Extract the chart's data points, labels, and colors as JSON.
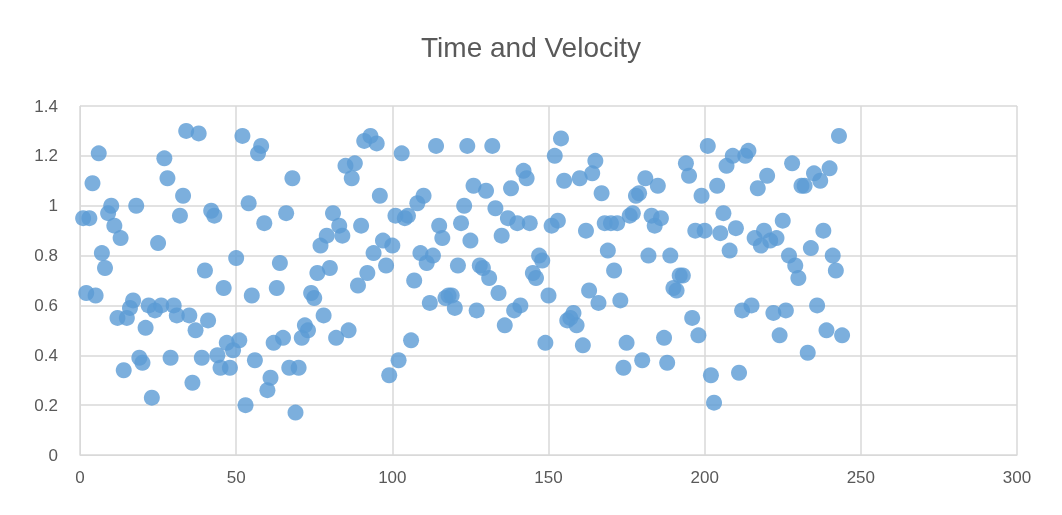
{
  "chart_data": {
    "type": "scatter",
    "title": "Time and Velocity",
    "xlim": [
      0,
      300
    ],
    "xticks": [
      0,
      50,
      100,
      150,
      200,
      250,
      300
    ],
    "ylim": [
      0,
      1.4
    ],
    "yticks": [
      0,
      0.2,
      0.4,
      0.6,
      0.8,
      1,
      1.2,
      1.4
    ],
    "grid": true,
    "marker": "circle",
    "series": [
      {
        "color": "#5b9bd5",
        "x": [
          1,
          2,
          3,
          4,
          5,
          6,
          7,
          8,
          9,
          10,
          11,
          12,
          13,
          14,
          15,
          16,
          17,
          18,
          19,
          20,
          21,
          22,
          23,
          24,
          25,
          26,
          27,
          28,
          29,
          30,
          31,
          32,
          33,
          34,
          35,
          36,
          37,
          38,
          39,
          40,
          41,
          42,
          43,
          44,
          45,
          46,
          47,
          48,
          49,
          50,
          51,
          52,
          53,
          54,
          55,
          56,
          57,
          58,
          59,
          60,
          61,
          62,
          63,
          64,
          65,
          66,
          67,
          68,
          69,
          70,
          71,
          72,
          73,
          74,
          75,
          76,
          77,
          78,
          79,
          80,
          81,
          82,
          83,
          84,
          85,
          86,
          87,
          88,
          89,
          90,
          91,
          92,
          93,
          94,
          95,
          96,
          97,
          98,
          99,
          100,
          101,
          102,
          103,
          104,
          105,
          106,
          107,
          108,
          109,
          110,
          111,
          112,
          113,
          114,
          115,
          116,
          117,
          118,
          119,
          120,
          121,
          122,
          123,
          124,
          125,
          126,
          127,
          128,
          129,
          130,
          131,
          132,
          133,
          134,
          135,
          136,
          137,
          138,
          139,
          140,
          141,
          142,
          143,
          144,
          145,
          146,
          147,
          148,
          149,
          150,
          151,
          152,
          153,
          154,
          155,
          156,
          157,
          158,
          159,
          160,
          161,
          162,
          163,
          164,
          165,
          166,
          167,
          168,
          169,
          170,
          171,
          172,
          173,
          174,
          175,
          176,
          177,
          178,
          179,
          180,
          181,
          182,
          183,
          184,
          185,
          186,
          187,
          188,
          189,
          190,
          191,
          192,
          193,
          194,
          195,
          196,
          197,
          198,
          199,
          200,
          201,
          202,
          203,
          204,
          205,
          206,
          207,
          208,
          209,
          210,
          211,
          212,
          213,
          214,
          215,
          216,
          217,
          218,
          219,
          220,
          221,
          222,
          223,
          224,
          225,
          226,
          227,
          228,
          229,
          230,
          231,
          232,
          233,
          234,
          235,
          236,
          237,
          238,
          239,
          240,
          241,
          242,
          243,
          244
        ],
        "values": [
          0.95,
          0.65,
          0.95,
          1.09,
          0.64,
          1.21,
          0.81,
          0.75,
          0.97,
          1.0,
          0.92,
          0.55,
          0.87,
          0.34,
          0.55,
          0.59,
          0.62,
          1.0,
          0.39,
          0.37,
          0.51,
          0.6,
          0.23,
          0.58,
          0.85,
          0.6,
          1.19,
          1.11,
          0.39,
          0.6,
          0.56,
          0.96,
          1.04,
          1.3,
          0.56,
          0.29,
          0.5,
          1.29,
          0.39,
          0.74,
          0.54,
          0.98,
          0.96,
          0.4,
          0.35,
          0.67,
          0.45,
          0.35,
          0.42,
          0.79,
          0.46,
          1.28,
          0.2,
          1.01,
          0.64,
          0.38,
          1.21,
          1.24,
          0.93,
          0.26,
          0.31,
          0.45,
          0.67,
          0.77,
          0.47,
          0.97,
          0.35,
          1.11,
          0.17,
          0.35,
          0.47,
          0.52,
          0.5,
          0.65,
          0.63,
          0.73,
          0.84,
          0.56,
          0.88,
          0.75,
          0.97,
          0.47,
          0.92,
          0.88,
          1.16,
          0.5,
          1.11,
          1.17,
          0.68,
          0.92,
          1.26,
          0.73,
          1.28,
          0.81,
          1.25,
          1.04,
          0.86,
          0.76,
          0.32,
          0.84,
          0.96,
          0.38,
          1.21,
          0.95,
          0.96,
          0.46,
          0.7,
          1.01,
          0.81,
          1.04,
          0.77,
          0.61,
          0.8,
          1.24,
          0.92,
          0.87,
          0.63,
          0.64,
          0.64,
          0.59,
          0.76,
          0.93,
          1.0,
          1.24,
          0.86,
          1.08,
          0.58,
          0.76,
          0.75,
          1.06,
          0.71,
          1.24,
          0.99,
          0.65,
          0.88,
          0.52,
          0.95,
          1.07,
          0.58,
          0.93,
          0.6,
          1.14,
          1.11,
          0.93,
          0.73,
          0.71,
          0.8,
          0.78,
          0.45,
          0.64,
          0.92,
          1.2,
          0.94,
          1.27,
          1.1,
          0.54,
          0.55,
          0.57,
          0.52,
          1.11,
          0.44,
          0.9,
          0.66,
          1.13,
          1.18,
          0.61,
          1.05,
          0.93,
          0.82,
          0.93,
          0.74,
          0.93,
          0.62,
          0.35,
          0.45,
          0.96,
          0.97,
          1.04,
          1.05,
          0.38,
          1.11,
          0.8,
          0.96,
          0.92,
          1.08,
          0.95,
          0.47,
          0.37,
          0.8,
          0.67,
          0.66,
          0.72,
          0.72,
          1.17,
          1.12,
          0.55,
          0.9,
          0.48,
          1.04,
          0.9,
          1.24,
          0.32,
          0.21,
          1.08,
          0.89,
          0.97,
          1.16,
          0.82,
          1.2,
          0.91,
          0.33,
          0.58,
          1.2,
          1.22,
          0.6,
          0.87,
          1.07,
          0.84,
          0.9,
          1.12,
          0.86,
          0.57,
          0.87,
          0.48,
          0.94,
          0.58,
          0.8,
          1.17,
          0.76,
          0.71,
          1.08,
          1.08,
          0.41,
          0.83,
          1.13,
          0.6,
          1.1,
          0.9,
          0.5,
          1.15,
          0.8,
          0.74,
          1.28,
          0.48
        ]
      }
    ]
  }
}
